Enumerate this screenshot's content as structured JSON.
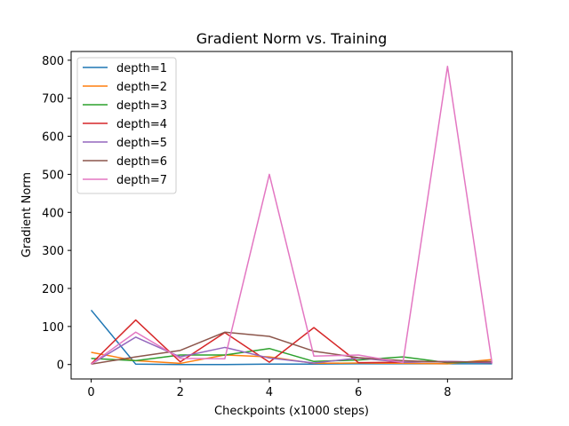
{
  "chart_data": {
    "type": "line",
    "title": "Gradient Norm vs. Training",
    "xlabel": "Checkpoints (x1000 steps)",
    "ylabel": "Gradient Norm",
    "x": [
      0,
      1,
      2,
      3,
      4,
      5,
      6,
      7,
      8,
      9
    ],
    "xlim": [
      -0.45,
      9.45
    ],
    "ylim": [
      -38,
      823
    ],
    "xticks": [
      0,
      2,
      4,
      6,
      8
    ],
    "yticks": [
      0,
      100,
      200,
      300,
      400,
      500,
      600,
      700,
      800
    ],
    "grid": false,
    "legend_position": "upper-left",
    "series": [
      {
        "name": "depth=1",
        "color": "#1f77b4",
        "values": [
          143,
          1,
          0,
          0,
          1,
          1,
          2,
          2,
          2,
          2
        ]
      },
      {
        "name": "depth=2",
        "color": "#ff7f0e",
        "values": [
          32,
          10,
          3,
          25,
          20,
          3,
          4,
          3,
          2,
          13
        ]
      },
      {
        "name": "depth=3",
        "color": "#2ca02c",
        "values": [
          16,
          10,
          25,
          25,
          42,
          8,
          12,
          20,
          5,
          7
        ]
      },
      {
        "name": "depth=4",
        "color": "#d62728",
        "values": [
          2,
          117,
          7,
          84,
          6,
          97,
          5,
          6,
          8,
          5
        ]
      },
      {
        "name": "depth=5",
        "color": "#9467bd",
        "values": [
          1,
          72,
          20,
          45,
          17,
          4,
          17,
          6,
          8,
          6
        ]
      },
      {
        "name": "depth=6",
        "color": "#8c564b",
        "values": [
          1,
          20,
          37,
          85,
          74,
          35,
          18,
          10,
          6,
          8
        ]
      },
      {
        "name": "depth=7",
        "color": "#e377c2",
        "values": [
          1,
          85,
          16,
          15,
          500,
          22,
          25,
          5,
          784,
          3
        ]
      }
    ]
  }
}
